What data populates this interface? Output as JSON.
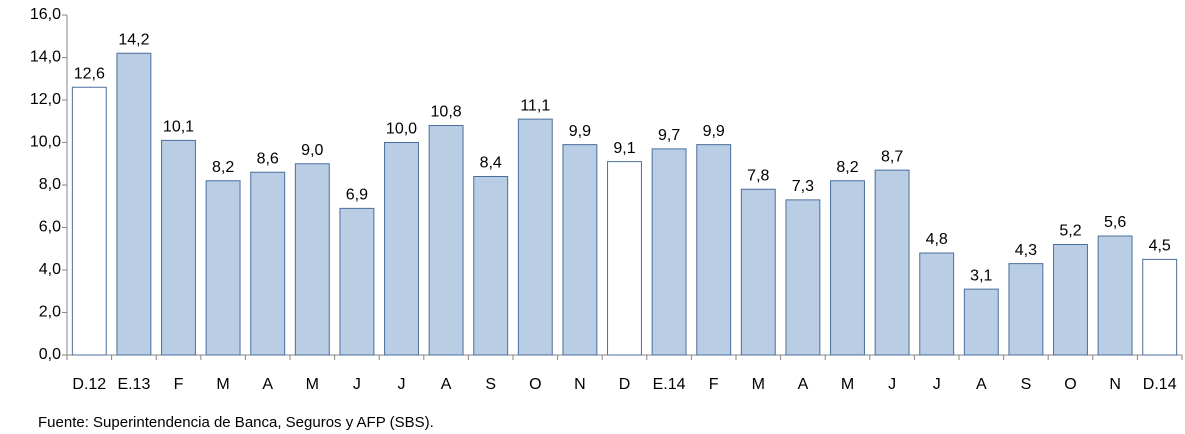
{
  "chart_data": {
    "type": "bar",
    "categories": [
      "D.12",
      "E.13",
      "F",
      "M",
      "A",
      "M",
      "J",
      "J",
      "A",
      "S",
      "O",
      "N",
      "D",
      "E.14",
      "F",
      "M",
      "A",
      "M",
      "J",
      "J",
      "A",
      "S",
      "O",
      "N",
      "D.14"
    ],
    "values": [
      12.6,
      14.2,
      10.1,
      8.2,
      8.6,
      9.0,
      6.9,
      10.0,
      10.8,
      8.4,
      11.1,
      9.9,
      9.1,
      9.7,
      9.9,
      7.8,
      7.3,
      8.2,
      8.7,
      4.8,
      3.1,
      4.3,
      5.2,
      5.6,
      4.5
    ],
    "value_labels": [
      "12,6",
      "14,2",
      "10,1",
      "8,2",
      "8,6",
      "9,0",
      "6,9",
      "10,0",
      "10,8",
      "8,4",
      "11,1",
      "9,9",
      "9,1",
      "9,7",
      "9,9",
      "7,8",
      "7,3",
      "8,2",
      "8,7",
      "4,8",
      "3,1",
      "4,3",
      "5,2",
      "5,6",
      "4,5"
    ],
    "colors": [
      "#ffffff",
      "#b9cde5",
      "#b9cde5",
      "#b9cde5",
      "#b9cde5",
      "#b9cde5",
      "#b9cde5",
      "#b9cde5",
      "#b9cde5",
      "#b9cde5",
      "#b9cde5",
      "#b9cde5",
      "#ffffff",
      "#b9cde5",
      "#b9cde5",
      "#b9cde5",
      "#b9cde5",
      "#b9cde5",
      "#b9cde5",
      "#b9cde5",
      "#b9cde5",
      "#b9cde5",
      "#b9cde5",
      "#b9cde5",
      "#ffffff"
    ],
    "ylim": [
      0,
      16
    ],
    "yticks": [
      {
        "value": 0,
        "label": "0,0"
      },
      {
        "value": 2,
        "label": "2,0"
      },
      {
        "value": 4,
        "label": "4,0"
      },
      {
        "value": 6,
        "label": "6,0"
      },
      {
        "value": 8,
        "label": "8,0"
      },
      {
        "value": 10,
        "label": "10,0"
      },
      {
        "value": 12,
        "label": "12,0"
      },
      {
        "value": 14,
        "label": "14,0"
      },
      {
        "value": 16,
        "label": "16,0"
      }
    ],
    "grid": false,
    "source": "Fuente: Superintendencia de Banca, Seguros y AFP (SBS)."
  }
}
